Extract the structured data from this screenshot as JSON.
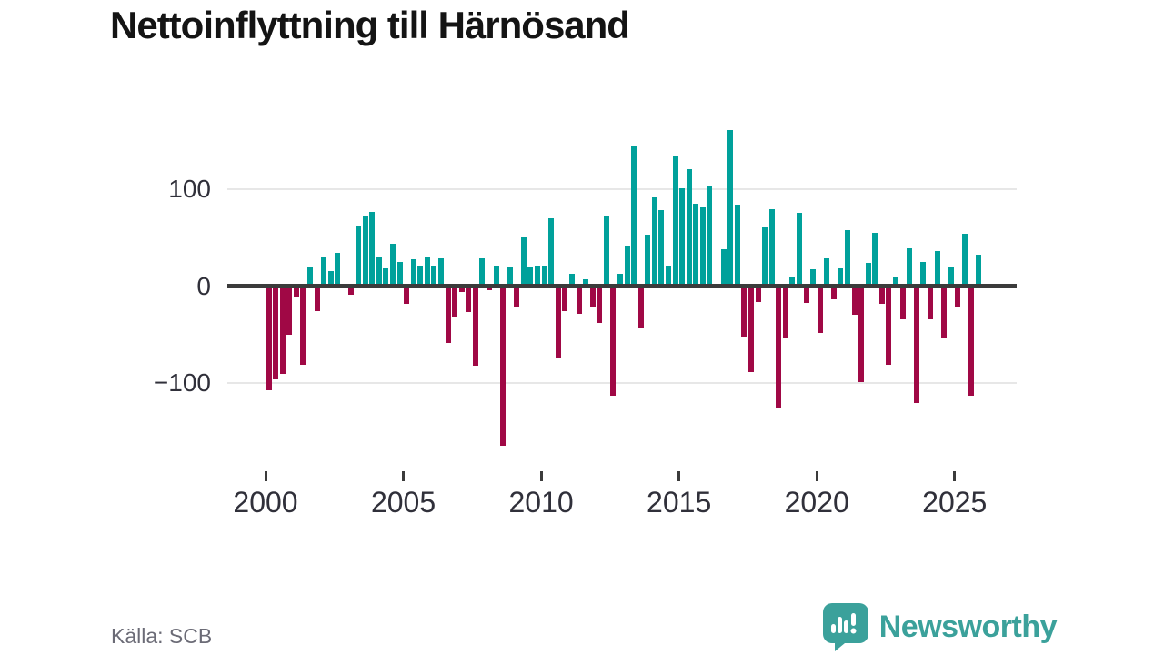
{
  "title": "Nettoinflyttning till Härnösand",
  "source": "Källa: SCB",
  "brand": {
    "name": "Newsworthy",
    "color": "#3ba19b",
    "logo_icon": "speech-bubble-bar-chart-icon"
  },
  "chart_data": {
    "type": "bar",
    "title": "Nettoinflyttning till Härnösand",
    "frequency": "quarterly",
    "start": "2000-Q1",
    "end": "2025-Q4",
    "values": [
      -108,
      -96,
      -91,
      -50,
      -11,
      -81,
      20,
      -26,
      30,
      16,
      34,
      0,
      -9,
      63,
      73,
      77,
      31,
      18,
      44,
      25,
      -18,
      28,
      21,
      31,
      21,
      29,
      -59,
      -32,
      -6,
      -27,
      -82,
      29,
      -4,
      21,
      -165,
      19,
      -22,
      50,
      19,
      21,
      21,
      70,
      -74,
      -26,
      13,
      -29,
      7,
      -21,
      -38,
      73,
      -113,
      13,
      42,
      145,
      -43,
      53,
      92,
      79,
      21,
      135,
      101,
      121,
      85,
      82,
      103,
      0,
      38,
      162,
      84,
      -52,
      -89,
      -16,
      62,
      80,
      -127,
      -53,
      10,
      76,
      -17,
      17,
      -48,
      29,
      -14,
      18,
      58,
      -30,
      -99,
      24,
      55,
      -18,
      -81,
      10,
      -34,
      39,
      -121,
      25,
      -34,
      36,
      -54,
      19,
      -21,
      54,
      -113,
      33
    ],
    "yticks": [
      {
        "value": 100,
        "label": "100"
      },
      {
        "value": 0,
        "label": "0"
      },
      {
        "value": -100,
        "label": "−100"
      }
    ],
    "xticks": [
      {
        "year": 2000,
        "label": "2000"
      },
      {
        "year": 2005,
        "label": "2005"
      },
      {
        "year": 2010,
        "label": "2010"
      },
      {
        "year": 2015,
        "label": "2015"
      },
      {
        "year": 2020,
        "label": "2020"
      },
      {
        "year": 2025,
        "label": "2025"
      }
    ],
    "ylim": [
      -175,
      175
    ],
    "grid": "horizontal",
    "legend": "none",
    "colors": {
      "positive": "#00a19b",
      "negative": "#a00845",
      "axis": "#3b3b3b",
      "grid": "#e7e7e7"
    }
  }
}
